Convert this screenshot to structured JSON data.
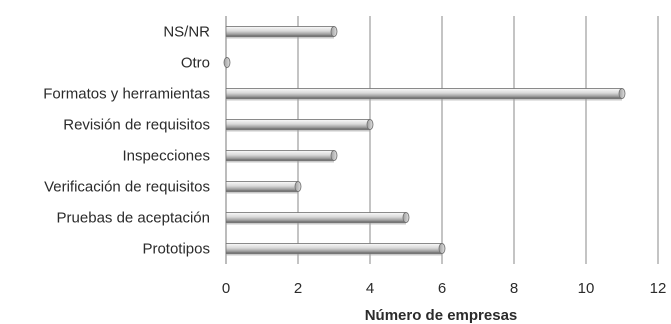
{
  "chart_data": {
    "type": "bar",
    "orientation": "horizontal",
    "categories": [
      "NS/NR",
      "Otro",
      "Formatos y herramientas",
      "Revisión de requisitos",
      "Inspecciones",
      "Verificación de requisitos",
      "Pruebas de aceptación",
      "Prototipos"
    ],
    "values": [
      3,
      0,
      11,
      4,
      3,
      2,
      5,
      6
    ],
    "xlabel": "Número de empresas",
    "xlim": [
      0,
      12
    ],
    "xticks": [
      "0",
      "2",
      "4",
      "6",
      "8",
      "10",
      "12"
    ],
    "grid": "vertical",
    "colors": {
      "bar_light": "#f4f4f4",
      "bar_mid": "#bdbdbd",
      "bar_dark": "#6e6e6e",
      "grid": "#8a8a8a"
    }
  }
}
